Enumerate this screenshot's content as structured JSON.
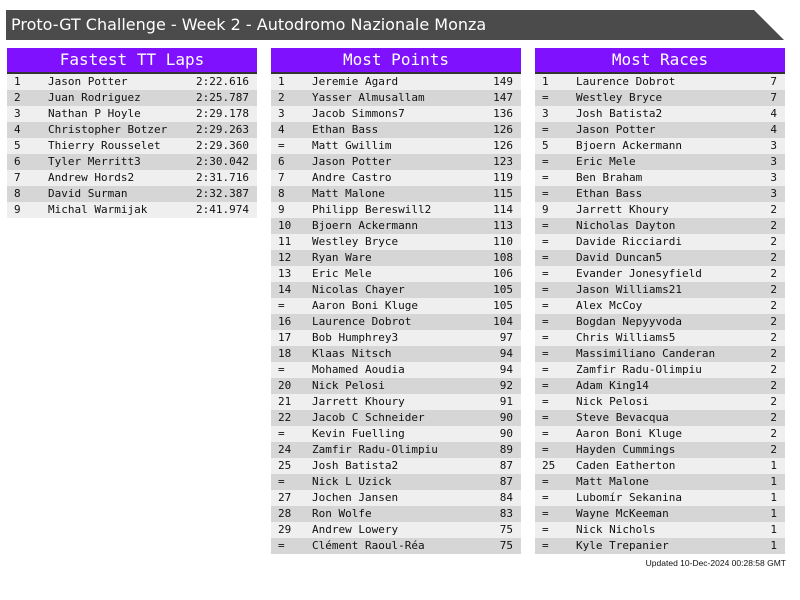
{
  "title": "Proto-GT Challenge - Week 2 - Autodromo Nazionale Monza",
  "colors": {
    "header": "#8011ff",
    "title_bar": "#4b4b4b",
    "row_light": "#efefef",
    "row_dark": "#d6d6d6"
  },
  "tables": [
    {
      "heading": "Fastest TT Laps",
      "rows": [
        [
          "1",
          "Jason Potter",
          "2:22.616"
        ],
        [
          "2",
          "Juan Rodriguez",
          "2:25.787"
        ],
        [
          "3",
          "Nathan P Hoyle",
          "2:29.178"
        ],
        [
          "4",
          "Christopher Botzer",
          "2:29.263"
        ],
        [
          "5",
          "Thierry Rousselet",
          "2:29.360"
        ],
        [
          "6",
          "Tyler Merritt3",
          "2:30.042"
        ],
        [
          "7",
          "Andrew Hords2",
          "2:31.716"
        ],
        [
          "8",
          "David Surman",
          "2:32.387"
        ],
        [
          "9",
          "Michal Warmijak",
          "2:41.974"
        ]
      ]
    },
    {
      "heading": "Most Points",
      "rows": [
        [
          "1",
          "Jeremie Agard",
          "149"
        ],
        [
          "2",
          "Yasser Almusallam",
          "147"
        ],
        [
          "3",
          "Jacob Simmons7",
          "136"
        ],
        [
          "4",
          "Ethan Bass",
          "126"
        ],
        [
          "=",
          "Matt Gwillim",
          "126"
        ],
        [
          "6",
          "Jason Potter",
          "123"
        ],
        [
          "7",
          "Andre Castro",
          "119"
        ],
        [
          "8",
          "Matt Malone",
          "115"
        ],
        [
          "9",
          "Philipp Bereswill2",
          "114"
        ],
        [
          "10",
          "Bjoern Ackermann",
          "113"
        ],
        [
          "11",
          "Westley Bryce",
          "110"
        ],
        [
          "12",
          "Ryan Ware",
          "108"
        ],
        [
          "13",
          "Eric Mele",
          "106"
        ],
        [
          "14",
          "Nicolas Chayer",
          "105"
        ],
        [
          "=",
          "Aaron Boni Kluge",
          "105"
        ],
        [
          "16",
          "Laurence Dobrot",
          "104"
        ],
        [
          "17",
          "Bob Humphrey3",
          "97"
        ],
        [
          "18",
          "Klaas Nitsch",
          "94"
        ],
        [
          "=",
          "Mohamed Aoudia",
          "94"
        ],
        [
          "20",
          "Nick Pelosi",
          "92"
        ],
        [
          "21",
          "Jarrett Khoury",
          "91"
        ],
        [
          "22",
          "Jacob C Schneider",
          "90"
        ],
        [
          "=",
          "Kevin Fuelling",
          "90"
        ],
        [
          "24",
          "Zamfir Radu-Olimpiu",
          "89"
        ],
        [
          "25",
          "Josh Batista2",
          "87"
        ],
        [
          "=",
          "Nick L Uzick",
          "87"
        ],
        [
          "27",
          "Jochen Jansen",
          "84"
        ],
        [
          "28",
          "Ron Wolfe",
          "83"
        ],
        [
          "29",
          "Andrew Lowery",
          "75"
        ],
        [
          "=",
          "Clément Raoul-Réa",
          "75"
        ]
      ]
    },
    {
      "heading": "Most Races",
      "rows": [
        [
          "1",
          "Laurence Dobrot",
          "7"
        ],
        [
          "=",
          "Westley Bryce",
          "7"
        ],
        [
          "3",
          "Josh Batista2",
          "4"
        ],
        [
          "=",
          "Jason Potter",
          "4"
        ],
        [
          "5",
          "Bjoern Ackermann",
          "3"
        ],
        [
          "=",
          "Eric Mele",
          "3"
        ],
        [
          "=",
          "Ben Braham",
          "3"
        ],
        [
          "=",
          "Ethan Bass",
          "3"
        ],
        [
          "9",
          "Jarrett Khoury",
          "2"
        ],
        [
          "=",
          "Nicholas Dayton",
          "2"
        ],
        [
          "=",
          "Davide Ricciardi",
          "2"
        ],
        [
          "=",
          "David Duncan5",
          "2"
        ],
        [
          "=",
          "Evander Jonesyfield",
          "2"
        ],
        [
          "=",
          "Jason Williams21",
          "2"
        ],
        [
          "=",
          "Alex McCoy",
          "2"
        ],
        [
          "=",
          "Bogdan Nepyyvoda",
          "2"
        ],
        [
          "=",
          "Chris Williams5",
          "2"
        ],
        [
          "=",
          "Massimiliano Canderan",
          "2"
        ],
        [
          "=",
          "Zamfir Radu-Olimpiu",
          "2"
        ],
        [
          "=",
          "Adam King14",
          "2"
        ],
        [
          "=",
          "Nick Pelosi",
          "2"
        ],
        [
          "=",
          "Steve Bevacqua",
          "2"
        ],
        [
          "=",
          "Aaron Boni Kluge",
          "2"
        ],
        [
          "=",
          "Hayden Cummings",
          "2"
        ],
        [
          "25",
          "Caden Eatherton",
          "1"
        ],
        [
          "=",
          "Matt Malone",
          "1"
        ],
        [
          "=",
          "Lubomír Sekanina",
          "1"
        ],
        [
          "=",
          "Wayne McKeeman",
          "1"
        ],
        [
          "=",
          "Nick Nichols",
          "1"
        ],
        [
          "=",
          "Kyle Trepanier",
          "1"
        ]
      ]
    }
  ],
  "footer": "Updated 10-Dec-2024 00:28:58 GMT"
}
